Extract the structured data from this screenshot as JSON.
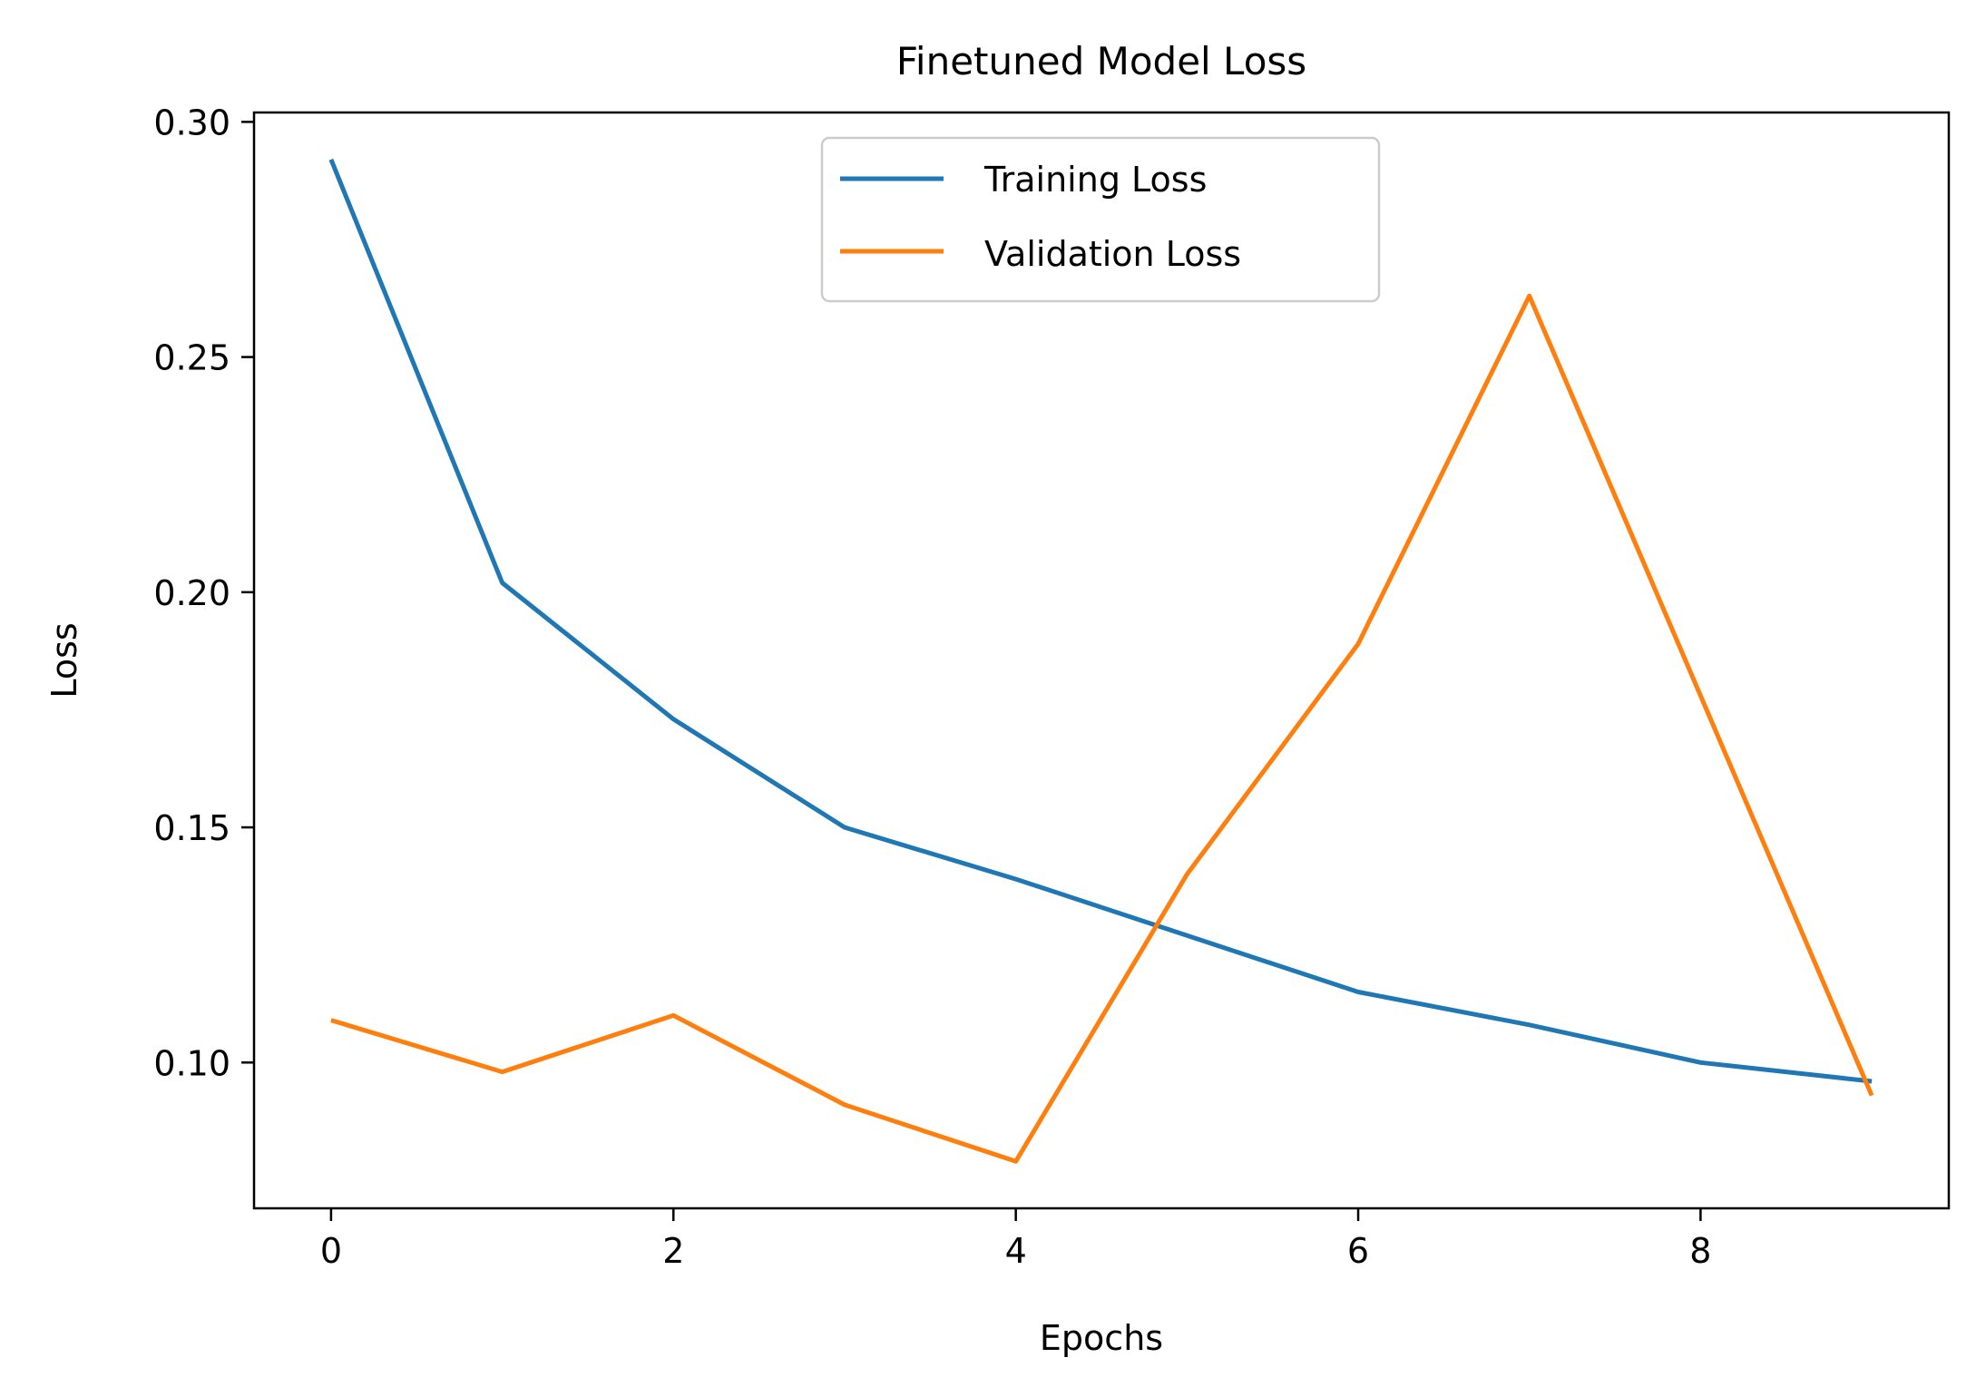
{
  "chart_data": {
    "type": "line",
    "title": "Finetuned Model Loss",
    "xlabel": "Epochs",
    "ylabel": "Loss",
    "x": [
      0,
      1,
      2,
      3,
      4,
      5,
      6,
      7,
      8,
      9
    ],
    "xlim": [
      -0.45,
      9.45
    ],
    "ylim": [
      0.069,
      0.302
    ],
    "xticks": [
      0,
      2,
      4,
      6,
      8
    ],
    "xtick_labels": [
      "0",
      "2",
      "4",
      "6",
      "8"
    ],
    "yticks": [
      0.1,
      0.15,
      0.2,
      0.25,
      0.3
    ],
    "ytick_labels": [
      "0.10",
      "0.15",
      "0.20",
      "0.25",
      "0.30"
    ],
    "grid": false,
    "legend_position": "top-center",
    "series": [
      {
        "name": "Training Loss",
        "color": "#1f77b4",
        "values": [
          0.292,
          0.202,
          0.173,
          0.15,
          0.139,
          0.127,
          0.115,
          0.108,
          0.1,
          0.096
        ]
      },
      {
        "name": "Validation Loss",
        "color": "#ff7f0e",
        "values": [
          0.109,
          0.098,
          0.11,
          0.091,
          0.079,
          0.14,
          0.189,
          0.263,
          0.178,
          0.093
        ]
      }
    ]
  }
}
